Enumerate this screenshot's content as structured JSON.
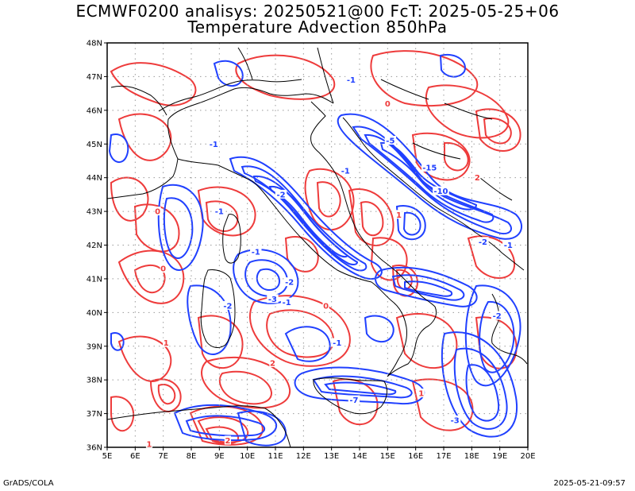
{
  "header": {
    "title_line1": "ECMWF0200 analisys: 20250521@00 FcT: 2025-05-25+06",
    "title_line2": "Temperature Advection 850hPa"
  },
  "map": {
    "lat_labels": [
      "48N",
      "47N",
      "46N",
      "45N",
      "44N",
      "43N",
      "42N",
      "41N",
      "40N",
      "39N",
      "38N",
      "37N",
      "36N"
    ],
    "lon_labels": [
      "5E",
      "6E",
      "7E",
      "8E",
      "9E",
      "10E",
      "11E",
      "12E",
      "13E",
      "14E",
      "15E",
      "16E",
      "17E",
      "18E",
      "19E",
      "20E"
    ],
    "lat_range": [
      36,
      48
    ],
    "lon_range": [
      5,
      20
    ],
    "grid_step_deg": 1,
    "colors": {
      "warm_advection": "#ee3b3b",
      "cold_advection": "#2040ff",
      "coast": "#000000",
      "grid": "#9a9a9a"
    },
    "contour_labels": [
      {
        "text": "-1",
        "lon": 13.7,
        "lat": 46.9,
        "kind": "cold"
      },
      {
        "text": "0",
        "lon": 15.0,
        "lat": 46.2,
        "kind": "warm"
      },
      {
        "text": "-1",
        "lon": 8.8,
        "lat": 45.0,
        "kind": "cold"
      },
      {
        "text": "-1",
        "lon": 13.5,
        "lat": 44.2,
        "kind": "cold"
      },
      {
        "text": "-5",
        "lon": 15.1,
        "lat": 45.1,
        "kind": "cold"
      },
      {
        "text": "-15",
        "lon": 16.5,
        "lat": 44.3,
        "kind": "cold"
      },
      {
        "text": "-10",
        "lon": 16.9,
        "lat": 43.6,
        "kind": "cold"
      },
      {
        "text": "-2",
        "lon": 11.2,
        "lat": 43.5,
        "kind": "cold"
      },
      {
        "text": "-1",
        "lon": 9.0,
        "lat": 43.0,
        "kind": "cold"
      },
      {
        "text": "0",
        "lon": 6.8,
        "lat": 43.0,
        "kind": "warm"
      },
      {
        "text": "-1",
        "lon": 10.3,
        "lat": 41.8,
        "kind": "cold"
      },
      {
        "text": "-2",
        "lon": 11.5,
        "lat": 40.9,
        "kind": "cold"
      },
      {
        "text": "-3",
        "lon": 10.9,
        "lat": 40.4,
        "kind": "cold"
      },
      {
        "text": "-1",
        "lon": 11.4,
        "lat": 40.3,
        "kind": "cold"
      },
      {
        "text": "0",
        "lon": 12.8,
        "lat": 40.2,
        "kind": "warm"
      },
      {
        "text": "-2",
        "lon": 9.3,
        "lat": 40.2,
        "kind": "cold"
      },
      {
        "text": "-1",
        "lon": 13.2,
        "lat": 39.1,
        "kind": "cold"
      },
      {
        "text": "1",
        "lon": 15.4,
        "lat": 42.9,
        "kind": "warm"
      },
      {
        "text": "2",
        "lon": 18.2,
        "lat": 44.0,
        "kind": "warm"
      },
      {
        "text": "-2",
        "lon": 18.4,
        "lat": 42.1,
        "kind": "cold"
      },
      {
        "text": "-1",
        "lon": 19.3,
        "lat": 42.0,
        "kind": "cold"
      },
      {
        "text": "-2",
        "lon": 18.9,
        "lat": 39.9,
        "kind": "cold"
      },
      {
        "text": "2",
        "lon": 10.9,
        "lat": 38.5,
        "kind": "warm"
      },
      {
        "text": "1",
        "lon": 16.2,
        "lat": 37.6,
        "kind": "warm"
      },
      {
        "text": "-7",
        "lon": 13.8,
        "lat": 37.4,
        "kind": "cold"
      },
      {
        "text": "-3",
        "lon": 17.4,
        "lat": 36.8,
        "kind": "cold"
      },
      {
        "text": "1",
        "lon": 6.5,
        "lat": 36.1,
        "kind": "warm"
      },
      {
        "text": "2",
        "lon": 9.3,
        "lat": 36.2,
        "kind": "warm"
      },
      {
        "text": "1",
        "lon": 7.1,
        "lat": 39.1,
        "kind": "warm"
      },
      {
        "text": "0",
        "lon": 7.0,
        "lat": 41.3,
        "kind": "warm"
      }
    ]
  },
  "footer": {
    "credit": "GrADS/COLA",
    "timestamp": "2025-05-21-09:57"
  }
}
